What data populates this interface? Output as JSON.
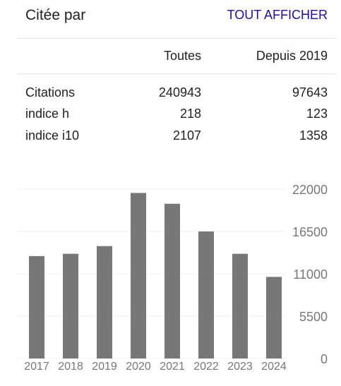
{
  "header": {
    "title": "Citée par",
    "view_all_label": "TOUT AFFICHER"
  },
  "table": {
    "columns": [
      "Toutes",
      "Depuis 2019"
    ],
    "rows": [
      {
        "label": "Citations",
        "all": "240943",
        "since": "97643"
      },
      {
        "label": "indice h",
        "all": "218",
        "since": "123"
      },
      {
        "label": "indice i10",
        "all": "2107",
        "since": "1358"
      }
    ]
  },
  "colors": {
    "bar": "#777777",
    "grid": "#eeeeee",
    "link": "#1a0dab"
  },
  "chart_data": {
    "type": "bar",
    "categories": [
      "2017",
      "2018",
      "2019",
      "2020",
      "2021",
      "2022",
      "2023",
      "2024"
    ],
    "values": [
      13300,
      13600,
      14600,
      21500,
      20100,
      16500,
      13600,
      10600
    ],
    "yticks": [
      "0",
      "5500",
      "11000",
      "16500",
      "22000"
    ],
    "ylim": [
      0,
      22000
    ],
    "grid": true
  }
}
